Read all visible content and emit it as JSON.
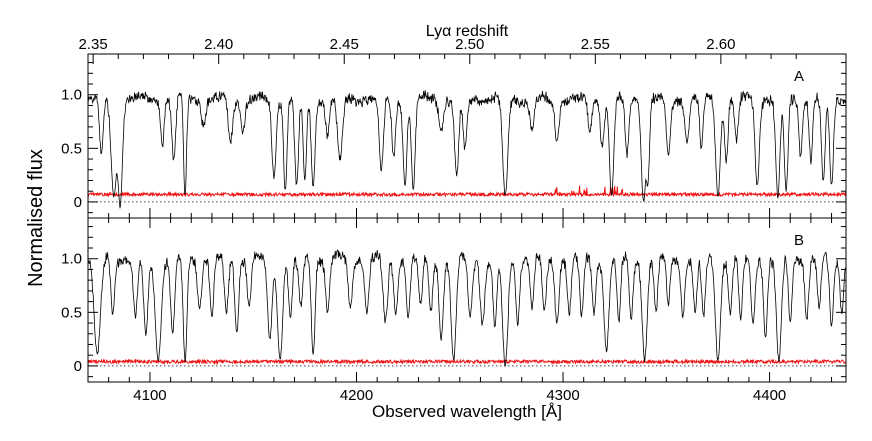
{
  "chart_data": {
    "type": "line",
    "top_axis": {
      "label": "Lyα redshift",
      "ticks": [
        2.35,
        2.4,
        2.45,
        2.5,
        2.55,
        2.6
      ],
      "tick_labels": [
        "2.35",
        "2.40",
        "2.45",
        "2.50",
        "2.55",
        "2.60"
      ],
      "rest_wavelength_A": 1215.67
    },
    "xlabel": "Observed wavelength [Å]",
    "ylabel": "Normalised flux",
    "xlim": [
      4070,
      4437
    ],
    "x_ticks": [
      4100,
      4200,
      4300,
      4400
    ],
    "x_tick_labels": [
      "4100",
      "4200",
      "4300",
      "4400"
    ],
    "panels": [
      {
        "name": "A",
        "ylim": [
          -0.15,
          1.38
        ],
        "y_ticks": [
          0,
          0.5,
          1.0
        ],
        "y_tick_labels": [
          "0",
          "0.5",
          "1.0"
        ],
        "reference_line": 0,
        "continuum_level": 0.96,
        "error_level": 0.07,
        "absorption_lines": [
          [
            4076.5,
            0.55,
            0.9
          ],
          [
            4082.5,
            0.95,
            1.3
          ],
          [
            4085.5,
            1.05,
            1.1
          ],
          [
            4106,
            0.45,
            0.8
          ],
          [
            4111.5,
            0.6,
            0.9
          ],
          [
            4117,
            0.95,
            0.7
          ],
          [
            4126,
            0.25,
            1.0
          ],
          [
            4139,
            0.4,
            1.1
          ],
          [
            4145,
            0.3,
            1.0
          ],
          [
            4160,
            0.75,
            1.0
          ],
          [
            4165.5,
            0.9,
            0.8
          ],
          [
            4171,
            0.85,
            0.9
          ],
          [
            4175,
            0.8,
            0.8
          ],
          [
            4179,
            0.85,
            0.9
          ],
          [
            4186,
            0.35,
            0.9
          ],
          [
            4192,
            0.6,
            1.2
          ],
          [
            4212,
            0.7,
            1.0
          ],
          [
            4218,
            0.55,
            0.9
          ],
          [
            4223.5,
            0.85,
            0.9
          ],
          [
            4227.5,
            0.9,
            0.9
          ],
          [
            4241,
            0.3,
            1.0
          ],
          [
            4248.5,
            0.75,
            1.0
          ],
          [
            4252.5,
            0.5,
            0.9
          ],
          [
            4272,
            0.95,
            1.2
          ],
          [
            4285,
            0.3,
            1.0
          ],
          [
            4297,
            0.4,
            1.0
          ],
          [
            4313,
            0.35,
            0.9
          ],
          [
            4319,
            0.45,
            0.9
          ],
          [
            4323.5,
            0.95,
            1.0
          ],
          [
            4331,
            0.55,
            0.9
          ],
          [
            4339,
            1.0,
            1.1
          ],
          [
            4341,
            0.8,
            0.8
          ],
          [
            4351,
            0.55,
            1.0
          ],
          [
            4360,
            0.4,
            1.0
          ],
          [
            4367,
            0.5,
            0.8
          ],
          [
            4375,
            0.95,
            1.1
          ],
          [
            4379,
            0.6,
            0.8
          ],
          [
            4384,
            0.4,
            0.9
          ],
          [
            4394,
            0.85,
            1.0
          ],
          [
            4404,
            0.95,
            1.0
          ],
          [
            4408,
            0.9,
            0.9
          ],
          [
            4415,
            0.55,
            0.8
          ],
          [
            4420,
            0.6,
            0.8
          ],
          [
            4426,
            0.8,
            0.9
          ],
          [
            4430,
            0.85,
            0.9
          ]
        ]
      },
      {
        "name": "B",
        "ylim": [
          -0.15,
          1.38
        ],
        "y_ticks": [
          0,
          0.5,
          1.0
        ],
        "y_tick_labels": [
          "0",
          "0.5",
          "1.0"
        ],
        "reference_line": 0,
        "continuum_level": 1.0,
        "error_level": 0.04,
        "absorption_lines": [
          [
            4074.5,
            0.9,
            1.5
          ],
          [
            4082,
            0.5,
            0.9
          ],
          [
            4093,
            0.55,
            1.0
          ],
          [
            4098,
            0.7,
            1.0
          ],
          [
            4104,
            0.95,
            1.4
          ],
          [
            4111,
            0.7,
            1.0
          ],
          [
            4117,
            0.95,
            0.9
          ],
          [
            4124,
            0.45,
            1.0
          ],
          [
            4130,
            0.55,
            0.9
          ],
          [
            4137,
            0.5,
            1.0
          ],
          [
            4142,
            0.7,
            0.9
          ],
          [
            4148,
            0.45,
            0.9
          ],
          [
            4158,
            0.75,
            1.1
          ],
          [
            4163,
            0.95,
            1.2
          ],
          [
            4168,
            0.55,
            0.9
          ],
          [
            4173,
            0.45,
            1.0
          ],
          [
            4179,
            0.9,
            0.9
          ],
          [
            4186,
            0.5,
            0.9
          ],
          [
            4197,
            0.45,
            1.0
          ],
          [
            4205,
            0.5,
            1.0
          ],
          [
            4214,
            0.6,
            1.1
          ],
          [
            4219,
            0.5,
            1.0
          ],
          [
            4225,
            0.55,
            0.9
          ],
          [
            4231,
            0.45,
            0.9
          ],
          [
            4236,
            0.5,
            0.9
          ],
          [
            4241,
            0.75,
            1.0
          ],
          [
            4247,
            0.95,
            1.2
          ],
          [
            4255,
            0.55,
            1.0
          ],
          [
            4261,
            0.6,
            1.1
          ],
          [
            4267,
            0.65,
            0.9
          ],
          [
            4272,
            1.0,
            1.3
          ],
          [
            4278,
            0.6,
            0.9
          ],
          [
            4285,
            0.45,
            0.9
          ],
          [
            4291,
            0.5,
            1.0
          ],
          [
            4297,
            0.6,
            1.0
          ],
          [
            4303,
            0.5,
            0.9
          ],
          [
            4309,
            0.55,
            0.9
          ],
          [
            4315,
            0.5,
            0.9
          ],
          [
            4321,
            0.85,
            1.2
          ],
          [
            4327,
            0.6,
            0.9
          ],
          [
            4333,
            0.55,
            0.9
          ],
          [
            4339.5,
            0.95,
            1.2
          ],
          [
            4345,
            0.5,
            0.9
          ],
          [
            4351,
            0.45,
            0.8
          ],
          [
            4358,
            0.5,
            1.0
          ],
          [
            4364,
            0.5,
            0.9
          ],
          [
            4368,
            0.55,
            0.9
          ],
          [
            4375,
            0.95,
            1.2
          ],
          [
            4381,
            0.5,
            0.9
          ],
          [
            4386,
            0.55,
            0.9
          ],
          [
            4392,
            0.6,
            1.0
          ],
          [
            4398,
            0.75,
            0.9
          ],
          [
            4404.5,
            0.95,
            1.2
          ],
          [
            4410,
            0.6,
            0.9
          ],
          [
            4418,
            0.55,
            0.9
          ],
          [
            4424,
            0.45,
            0.9
          ],
          [
            4430,
            0.65,
            0.9
          ],
          [
            4435,
            0.5,
            0.8
          ]
        ]
      }
    ]
  },
  "colors": {
    "flux": "#000000",
    "error": "#ee1111",
    "zero_line": "#444444",
    "axes": "#000000"
  }
}
